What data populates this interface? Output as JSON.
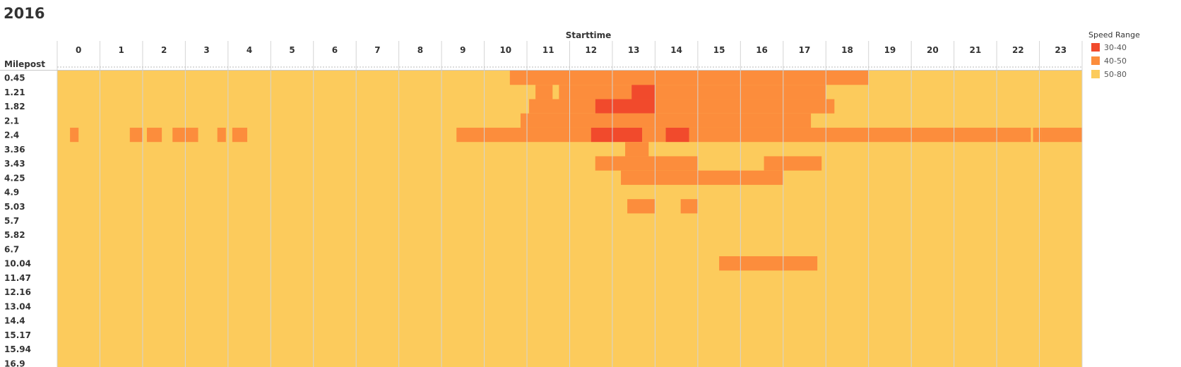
{
  "chart_data": {
    "type": "heatmap",
    "title": "2016",
    "xlabel": "Starttime",
    "ylabel": "Milepost",
    "x_categories": [
      "0",
      "1",
      "2",
      "3",
      "4",
      "5",
      "6",
      "7",
      "8",
      "9",
      "10",
      "11",
      "12",
      "13",
      "14",
      "15",
      "16",
      "17",
      "18",
      "19",
      "20",
      "21",
      "22",
      "23"
    ],
    "y_categories": [
      "0.45",
      "1.21",
      "1.82",
      "2.1",
      "2.4",
      "3.36",
      "3.43",
      "4.25",
      "4.9",
      "5.03",
      "5.7",
      "5.82",
      "6.7",
      "10.04",
      "11.47",
      "12.16",
      "13.04",
      "14.4",
      "15.17",
      "15.94",
      "16.9"
    ],
    "default_range": "50-80",
    "legend": {
      "title": "Speed Range",
      "position": "top-right",
      "items": [
        {
          "label": "30-40",
          "color": "#f14a2c"
        },
        {
          "label": "40-50",
          "color": "#fc8d3c"
        },
        {
          "label": "50-80",
          "color": "#fccb5c"
        }
      ]
    },
    "cells": [
      {
        "milepost": "0.45",
        "start": 10.6,
        "end": 18.0,
        "range": "40-50"
      },
      {
        "milepost": "0.45",
        "start": 18.0,
        "end": 19.0,
        "range": "40-50"
      },
      {
        "milepost": "1.21",
        "start": 11.2,
        "end": 11.6,
        "range": "40-50"
      },
      {
        "milepost": "1.21",
        "start": 11.75,
        "end": 13.45,
        "range": "40-50"
      },
      {
        "milepost": "1.21",
        "start": 13.45,
        "end": 14.0,
        "range": "30-40"
      },
      {
        "milepost": "1.21",
        "start": 14.0,
        "end": 18.0,
        "range": "40-50"
      },
      {
        "milepost": "1.82",
        "start": 11.05,
        "end": 12.6,
        "range": "40-50"
      },
      {
        "milepost": "1.82",
        "start": 12.6,
        "end": 14.0,
        "range": "30-40"
      },
      {
        "milepost": "1.82",
        "start": 14.0,
        "end": 18.2,
        "range": "40-50"
      },
      {
        "milepost": "2.1",
        "start": 10.85,
        "end": 17.65,
        "range": "40-50"
      },
      {
        "milepost": "2.4",
        "start": 0.3,
        "end": 0.5,
        "range": "40-50"
      },
      {
        "milepost": "2.4",
        "start": 1.7,
        "end": 2.0,
        "range": "40-50"
      },
      {
        "milepost": "2.4",
        "start": 2.1,
        "end": 2.45,
        "range": "40-50"
      },
      {
        "milepost": "2.4",
        "start": 2.7,
        "end": 3.3,
        "range": "40-50"
      },
      {
        "milepost": "2.4",
        "start": 3.75,
        "end": 3.95,
        "range": "40-50"
      },
      {
        "milepost": "2.4",
        "start": 4.1,
        "end": 4.45,
        "range": "40-50"
      },
      {
        "milepost": "2.4",
        "start": 9.35,
        "end": 12.5,
        "range": "40-50"
      },
      {
        "milepost": "2.4",
        "start": 12.5,
        "end": 13.7,
        "range": "30-40"
      },
      {
        "milepost": "2.4",
        "start": 13.7,
        "end": 14.25,
        "range": "40-50"
      },
      {
        "milepost": "2.4",
        "start": 14.25,
        "end": 14.8,
        "range": "30-40"
      },
      {
        "milepost": "2.4",
        "start": 14.8,
        "end": 22.8,
        "range": "40-50"
      },
      {
        "milepost": "2.4",
        "start": 22.85,
        "end": 23.05,
        "range": "40-50"
      },
      {
        "milepost": "2.4",
        "start": 23.05,
        "end": 24.0,
        "range": "40-50"
      },
      {
        "milepost": "3.36",
        "start": 13.3,
        "end": 13.85,
        "range": "40-50"
      },
      {
        "milepost": "3.43",
        "start": 12.6,
        "end": 15.0,
        "range": "40-50"
      },
      {
        "milepost": "3.43",
        "start": 16.55,
        "end": 17.9,
        "range": "40-50"
      },
      {
        "milepost": "4.25",
        "start": 13.2,
        "end": 17.0,
        "range": "40-50"
      },
      {
        "milepost": "5.03",
        "start": 13.35,
        "end": 14.0,
        "range": "40-50"
      },
      {
        "milepost": "5.03",
        "start": 14.6,
        "end": 15.0,
        "range": "40-50"
      },
      {
        "milepost": "10.04",
        "start": 15.5,
        "end": 17.8,
        "range": "40-50"
      }
    ]
  }
}
